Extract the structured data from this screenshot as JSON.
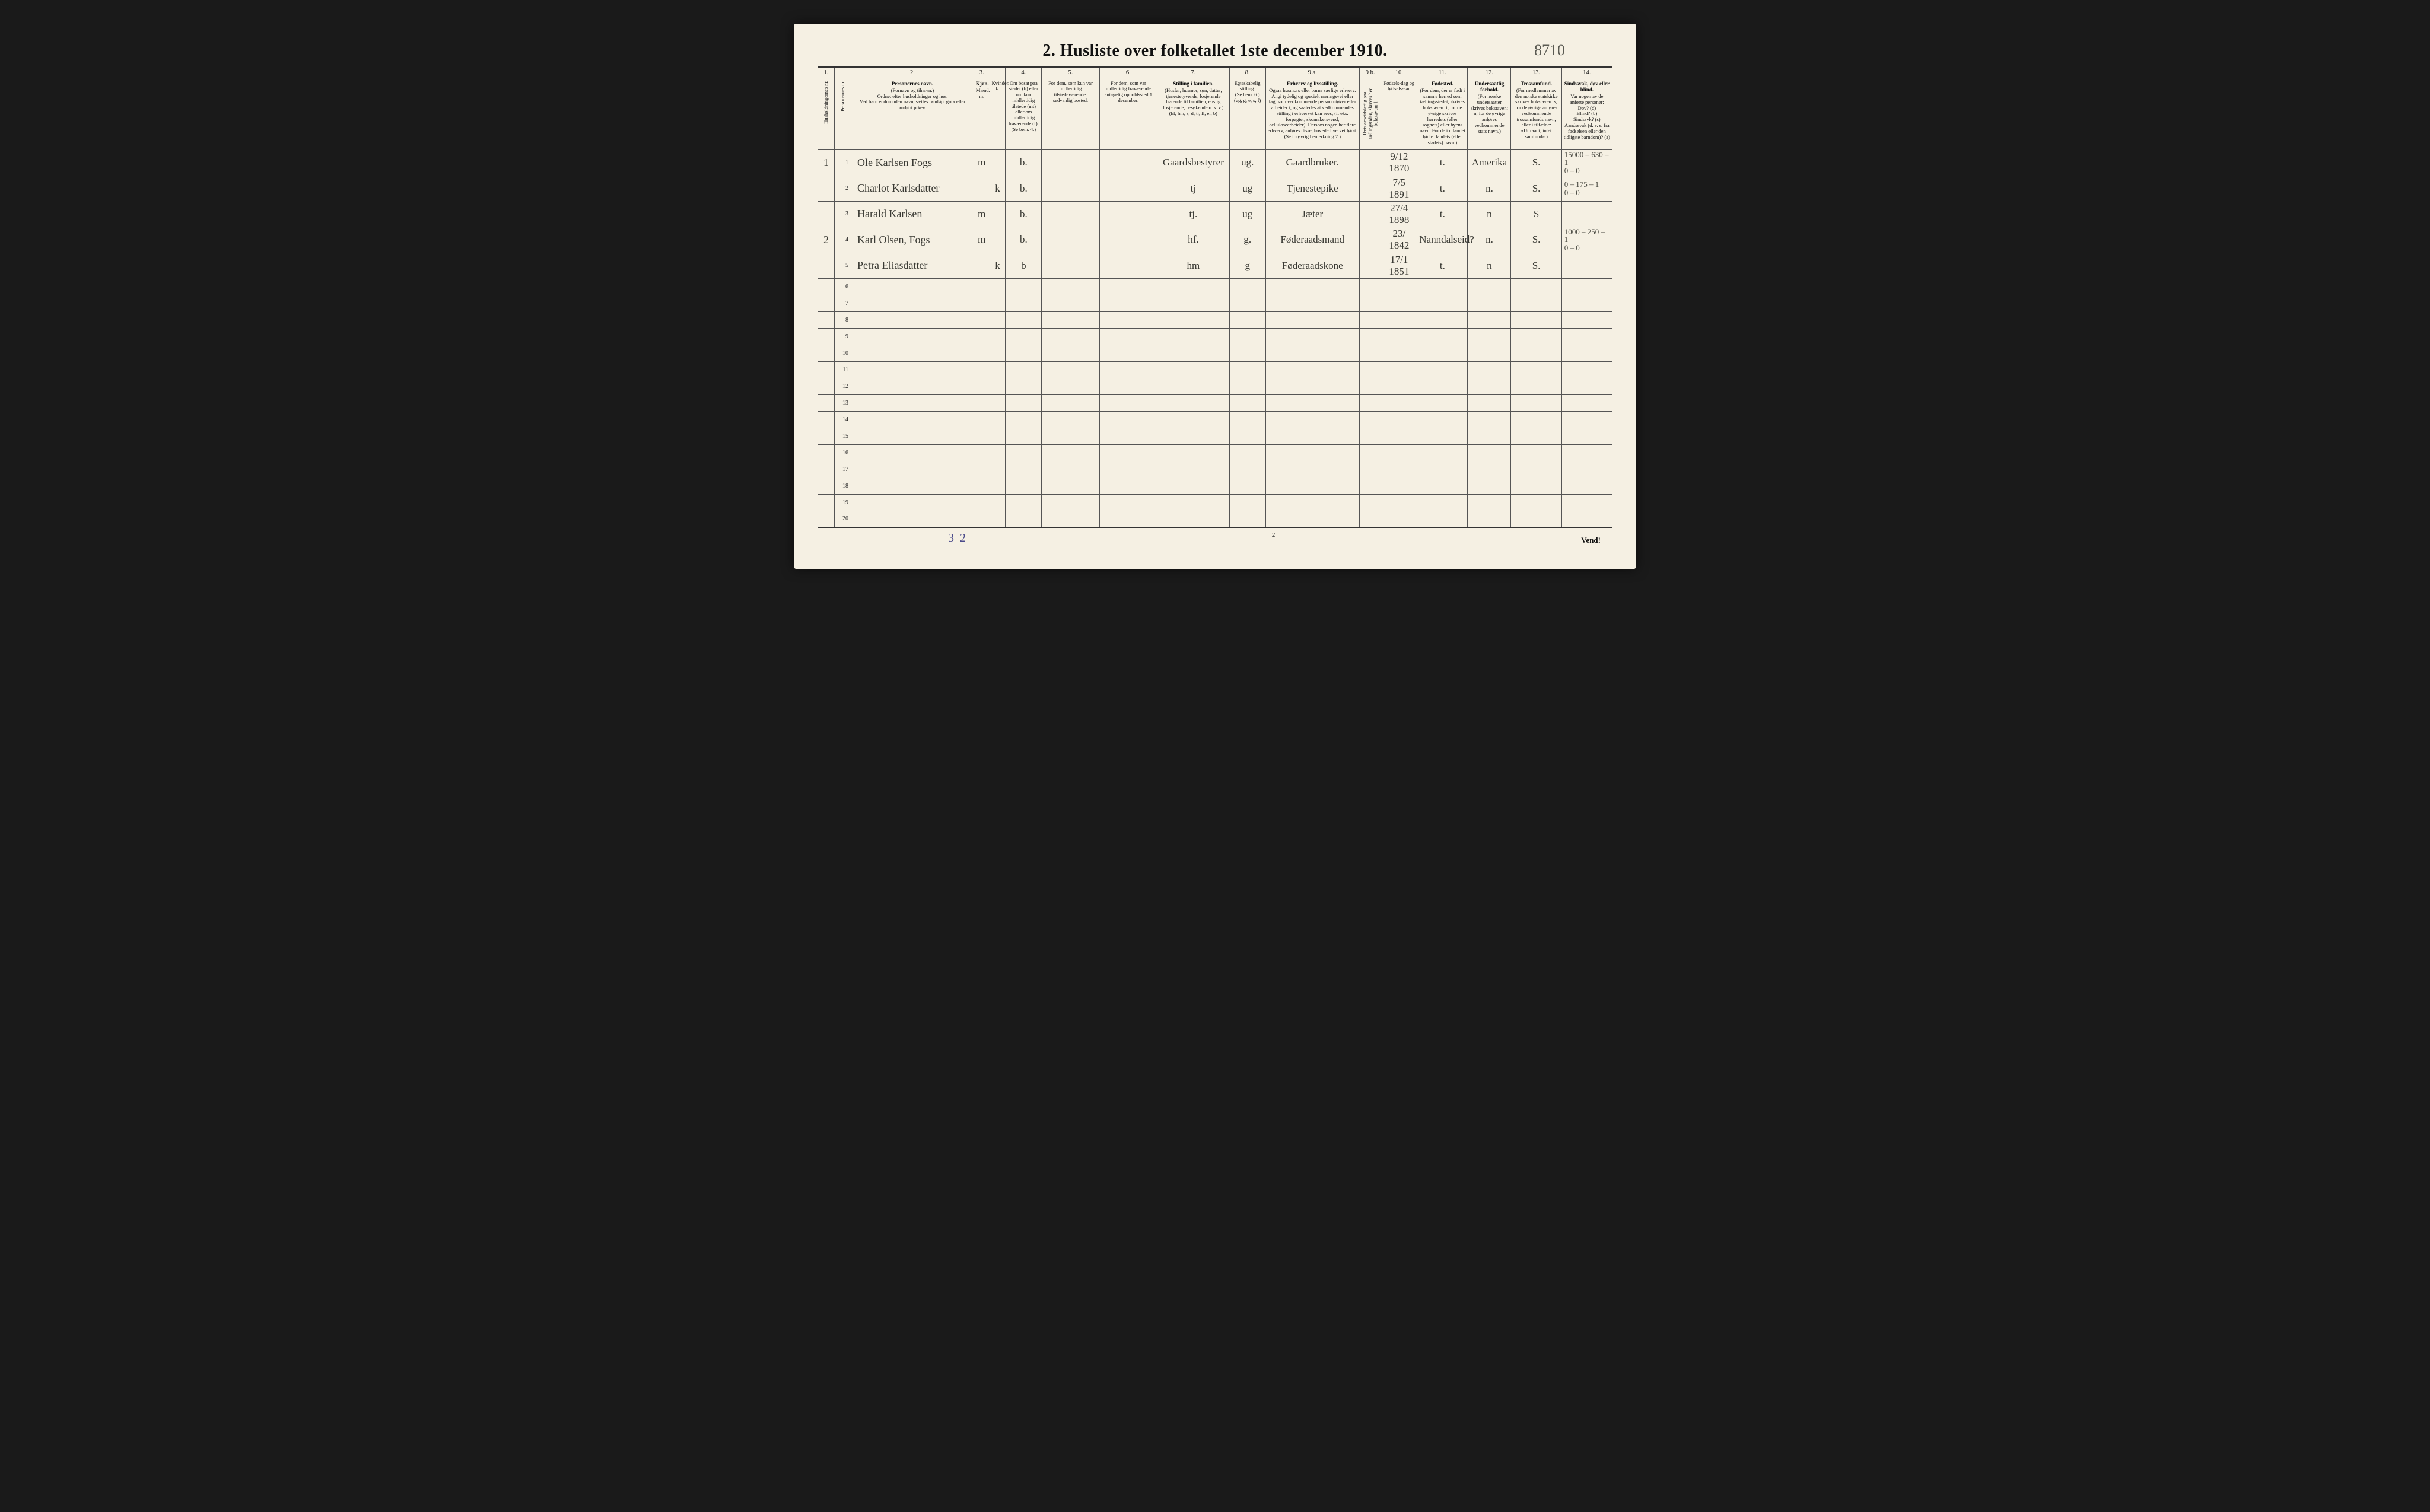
{
  "title": "2.  Husliste over folketallet 1ste december 1910.",
  "top_margin_note": "8710",
  "footer_left": "3–2",
  "footer_center": "2",
  "footer_right": "Vend!",
  "col_widths_pct": [
    2.3,
    2.3,
    17,
    2.2,
    2.2,
    5,
    8,
    8,
    10,
    5,
    13,
    3,
    5,
    7,
    6,
    7,
    7
  ],
  "colnums": [
    "1.",
    "",
    "2.",
    "3.",
    "",
    "4.",
    "5.",
    "6.",
    "7.",
    "8.",
    "9 a.",
    "9 b.",
    "10.",
    "11.",
    "12.",
    "13.",
    "14."
  ],
  "headers": [
    {
      "bold": "",
      "body": "Husholdningernes nr.",
      "vertical": true
    },
    {
      "bold": "",
      "body": "Personernes nr.",
      "vertical": true
    },
    {
      "bold": "Personernes navn.",
      "body": "(Fornavn og tilnavn.)\nOrdnet efter husholdninger og hus.\nVed barn endnu uden navn, sættes: «udøpt gut» eller «udøpt pike»."
    },
    {
      "bold": "Kjøn.",
      "body": "Mænd.\nm.",
      "sub": true
    },
    {
      "bold": "",
      "body": "Kvinder.\nk.",
      "sub": true
    },
    {
      "bold": "",
      "body": "Om bosat paa stedet (b) eller om kun midlertidig tilstede (mt) eller om midlertidig fraværende (f).\n(Se bem. 4.)"
    },
    {
      "bold": "",
      "body": "For dem, som kun var midlertidig tilstedeværende:\nsedvanlig bosted."
    },
    {
      "bold": "",
      "body": "For dem, som var midlertidig fraværende:\nantagelig opholdssted 1 december."
    },
    {
      "bold": "Stilling i familien.",
      "body": "(Husfar, husmor, søn, datter, tjenestetyvende, losjerende hørende til familien, enslig losjerende, besøkende o. s. v.)\n(hf, hm, s, d, tj, fl, el, b)"
    },
    {
      "bold": "",
      "body": "Egteskabelig stilling.\n(Se bem. 6.)\n(ug, g, e, s, f)"
    },
    {
      "bold": "Erhverv og livsstilling.",
      "body": "Ogsaa husmors eller barns særlige erhverv. Angi tydelig og specielt næringsvei eller fag, som vedkommende person utøver eller arbeider i, og saaledes at vedkommendes stilling i erhvervet kan sees, (f. eks. forpagter, skomakersvend, cellulosearbeider). Dersom nogen har flere erhverv, anføres disse, hovederhvervet først.\n(Se forøvrig bemerkning 7.)"
    },
    {
      "bold": "",
      "body": "Hvis arbeidsledig paa tællingstiden, skrives her bokstaven: l.",
      "vertical": true
    },
    {
      "bold": "",
      "body": "Fødsels-dag og fødsels-aar."
    },
    {
      "bold": "Fødested.",
      "body": "(For dem, der er født i samme herred som tællingsstedet, skrives bokstaven: t; for de øvrige skrives herredets (eller sognets) eller byens navn. For de i utlandet fødte: landets (eller stadets) navn.)"
    },
    {
      "bold": "Undersaatlig forhold.",
      "body": "(For norske undersaatter skrives bokstaven: n; for de øvrige anføres vedkommende stats navn.)"
    },
    {
      "bold": "Trossamfund.",
      "body": "(For medlemmer av den norske statskirke skrives bokstaven: s; for de øvrige anføres vedkommende trossamfunds navn, eller i tilfælde: «Uttraadt, intet samfund».)"
    },
    {
      "bold": "Sindssvak, døv eller blind.",
      "body": "Var nogen av de anførte personer:\nDøv? (d)\nBlind? (b)\nSindssyk? (s)\nAandssvak (d. v. s. fra fødselsen eller den tidligste barndom)? (a)"
    }
  ],
  "rows": [
    {
      "hh": "1",
      "nr": "1",
      "name": "Ole Karlsen Fogs",
      "m": "m",
      "k": "",
      "bf": "b.",
      "c5": "",
      "c6": "",
      "c7": "Gaardsbestyrer",
      "c8": "ug.",
      "c9a": "Gaardbruker.",
      "c9b": "",
      "c10": "9/12 1870",
      "c11": "t.",
      "c12": "Amerika",
      "c13": "S.",
      "c14": "15000 – 630 – 1\n0 – 0"
    },
    {
      "hh": "",
      "nr": "2",
      "name": "Charlot Karlsdatter",
      "m": "",
      "k": "k",
      "bf": "b.",
      "c5": "",
      "c6": "",
      "c7": "tj",
      "c8": "ug",
      "c9a": "Tjenestepike",
      "c9b": "",
      "c10": "7/5 1891",
      "c11": "t.",
      "c12": "n.",
      "c13": "S.",
      "c14": "0 – 175 – 1\n0 – 0"
    },
    {
      "hh": "",
      "nr": "3",
      "name": "Harald Karlsen",
      "m": "m",
      "k": "",
      "bf": "b.",
      "c5": "",
      "c6": "",
      "c7": "tj.",
      "c8": "ug",
      "c9a": "Jæter",
      "c9b": "",
      "c10": "27/4 1898",
      "c11": "t.",
      "c12": "n",
      "c13": "S",
      "c14": ""
    },
    {
      "hh": "2",
      "nr": "4",
      "name": "Karl Olsen, Fogs",
      "m": "m",
      "k": "",
      "bf": "b.",
      "c5": "",
      "c6": "",
      "c7": "hf.",
      "c8": "g.",
      "c9a": "Føderaadsmand",
      "c9b": "",
      "c10": "23/ 1842",
      "c11": "Nanndalseid?",
      "c12": "n.",
      "c13": "S.",
      "c14": "1000 – 250 – 1\n0 – 0"
    },
    {
      "hh": "",
      "nr": "5",
      "name": "Petra Eliasdatter",
      "m": "",
      "k": "k",
      "bf": "b",
      "c5": "",
      "c6": "",
      "c7": "hm",
      "c8": "g",
      "c9a": "Føderaadskone",
      "c9b": "",
      "c10": "17/1 1851",
      "c11": "t.",
      "c12": "n",
      "c13": "S.",
      "c14": ""
    }
  ],
  "empty_row_count": 15,
  "total_rows": 20
}
